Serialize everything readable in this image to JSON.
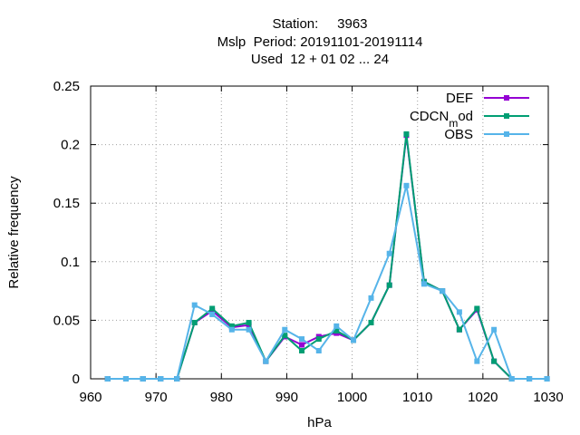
{
  "chart_data": {
    "type": "line",
    "title": [
      "Station:     3963",
      "Mslp  Period: 20191101-20191114",
      "Used  12 + 01 02 ... 24"
    ],
    "xlabel": "hPa",
    "ylabel": "Relative frequency",
    "xlim": [
      960,
      1030
    ],
    "ylim": [
      0,
      0.25
    ],
    "x_ticks": [
      "960",
      "970",
      "980",
      "990",
      "1000",
      "1010",
      "1020",
      "1030"
    ],
    "y_ticks": [
      "0",
      "0.05",
      "0.1",
      "0.15",
      "0.2",
      "0.25"
    ],
    "grid": true,
    "legend_position": "top-right",
    "x": [
      962.6,
      965.4,
      968.0,
      970.7,
      973.2,
      975.9,
      978.6,
      981.6,
      984.2,
      986.8,
      989.7,
      992.3,
      994.9,
      997.6,
      1000.2,
      1002.9,
      1005.7,
      1008.3,
      1011.0,
      1013.8,
      1016.4,
      1019.1,
      1021.7,
      1024.4,
      1027.1,
      1029.8
    ],
    "series": [
      {
        "name": "DEF",
        "color": "#9400d3",
        "values": [
          0,
          0,
          0,
          0,
          0,
          0.048,
          0.058,
          0.044,
          0.046,
          0.015,
          0.036,
          0.029,
          0.036,
          0.039,
          0.033,
          0.048,
          0.08,
          0.208,
          0.083,
          0.075,
          0.042,
          0.059,
          0.015,
          0,
          0,
          0
        ]
      },
      {
        "name": "CDCN_mod",
        "color": "#009e73",
        "values": [
          0,
          0,
          0,
          0,
          0,
          0.048,
          0.06,
          0.045,
          0.048,
          0.015,
          0.037,
          0.024,
          0.034,
          0.041,
          0.033,
          0.048,
          0.08,
          0.209,
          0.083,
          0.075,
          0.042,
          0.06,
          0.015,
          0,
          0,
          0
        ]
      },
      {
        "name": "OBS",
        "color": "#56b4e9",
        "values": [
          0,
          0,
          0,
          0,
          0,
          0.063,
          0.055,
          0.042,
          0.042,
          0.015,
          0.042,
          0.034,
          0.024,
          0.045,
          0.033,
          0.069,
          0.107,
          0.165,
          0.081,
          0.075,
          0.057,
          0.015,
          0.042,
          0,
          0,
          0
        ]
      }
    ]
  }
}
